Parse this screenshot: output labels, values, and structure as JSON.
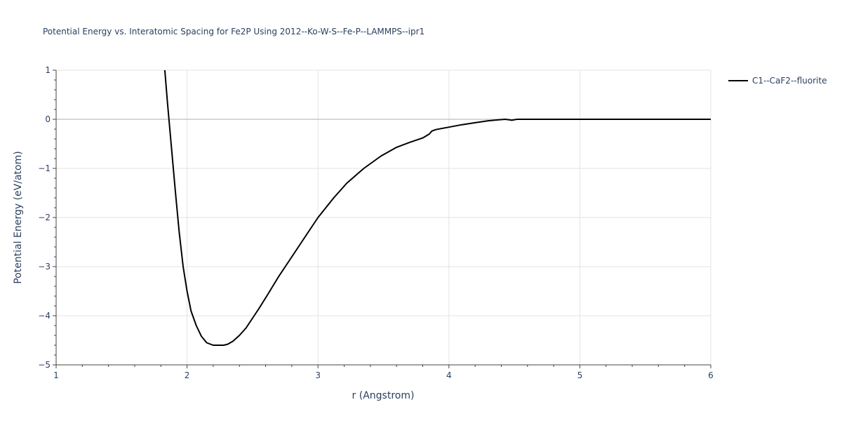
{
  "chart_data": {
    "type": "line",
    "title": "Potential Energy vs. Interatomic Spacing for Fe2P Using 2012--Ko-W-S--Fe-P--LAMMPS--ipr1",
    "xlabel": "r (Angstrom)",
    "ylabel": "Potential Energy (eV/atom)",
    "xlim": [
      1,
      6
    ],
    "ylim": [
      -5,
      1
    ],
    "x_ticks": [
      1,
      2,
      3,
      4,
      5,
      6
    ],
    "x_tick_labels": [
      "1",
      "2",
      "3",
      "4",
      "5",
      "6"
    ],
    "y_ticks": [
      1,
      0,
      -1,
      -2,
      -3,
      -4,
      -5
    ],
    "y_tick_labels": [
      "1",
      "0",
      "−1",
      "−2",
      "−3",
      "−4",
      "−5"
    ],
    "grid": true,
    "legend_position": "top-right",
    "series": [
      {
        "name": "C1--CaF2--fluorite",
        "color": "#000000",
        "x": [
          1.83,
          1.85,
          1.88,
          1.91,
          1.94,
          1.97,
          2.0,
          2.03,
          2.07,
          2.11,
          2.15,
          2.2,
          2.25,
          2.28,
          2.31,
          2.35,
          2.4,
          2.45,
          2.5,
          2.55,
          2.62,
          2.7,
          2.8,
          2.9,
          3.0,
          3.12,
          3.22,
          3.35,
          3.48,
          3.6,
          3.7,
          3.8,
          3.85,
          3.87,
          3.9,
          4.0,
          4.1,
          4.2,
          4.3,
          4.38,
          4.43,
          4.46,
          4.48,
          4.5,
          4.52,
          4.6,
          4.8,
          5.0,
          5.5,
          6.0
        ],
        "y": [
          1.0,
          0.35,
          -0.55,
          -1.45,
          -2.3,
          -3.0,
          -3.5,
          -3.9,
          -4.2,
          -4.42,
          -4.55,
          -4.6,
          -4.6,
          -4.6,
          -4.58,
          -4.52,
          -4.4,
          -4.25,
          -4.05,
          -3.85,
          -3.55,
          -3.2,
          -2.8,
          -2.4,
          -2.0,
          -1.6,
          -1.3,
          -1.0,
          -0.75,
          -0.57,
          -0.47,
          -0.38,
          -0.3,
          -0.24,
          -0.21,
          -0.16,
          -0.11,
          -0.07,
          -0.03,
          -0.01,
          0.0,
          -0.01,
          -0.02,
          -0.01,
          0.0,
          0.0,
          0.0,
          0.0,
          0.0,
          0.0
        ]
      }
    ]
  }
}
